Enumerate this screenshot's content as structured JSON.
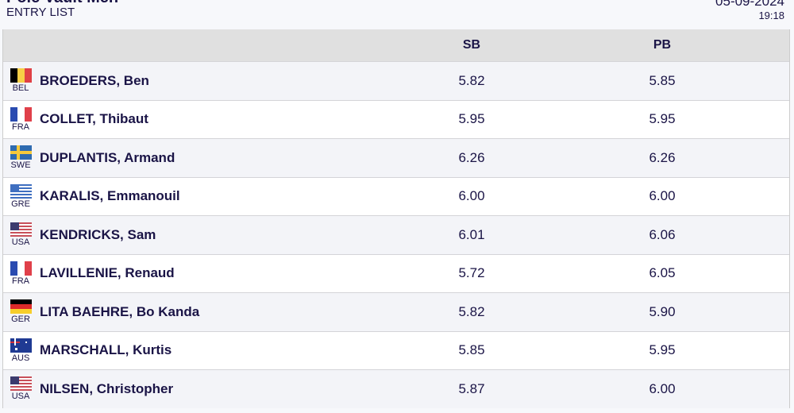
{
  "header": {
    "title": "Pole Vault Men",
    "subtitle": "ENTRY LIST",
    "date": "05-09-2024",
    "time": "19:18"
  },
  "columns": {
    "sb": "SB",
    "pb": "PB"
  },
  "rows": [
    {
      "code": "BEL",
      "name": "BROEDERS, Ben",
      "sb": "5.82",
      "pb": "5.85",
      "flag": "vertical",
      "colors": [
        "#000000",
        "#f7ce46",
        "#e04045"
      ]
    },
    {
      "code": "FRA",
      "name": "COLLET, Thibaut",
      "sb": "5.95",
      "pb": "5.95",
      "flag": "vertical",
      "colors": [
        "#2a4bb0",
        "#ffffff",
        "#e0404a"
      ]
    },
    {
      "code": "SWE",
      "name": "DUPLANTIS, Armand",
      "sb": "6.26",
      "pb": "6.26",
      "flag": "nordic",
      "colors": [
        "#2f6bb0",
        "#f6c93a"
      ]
    },
    {
      "code": "GRE",
      "name": "KARALIS, Emmanouil",
      "sb": "6.00",
      "pb": "6.00",
      "flag": "stripes",
      "colors": [
        "#3f6fc0",
        "#ffffff"
      ]
    },
    {
      "code": "USA",
      "name": "KENDRICKS, Sam",
      "sb": "6.01",
      "pb": "6.06",
      "flag": "stripes",
      "colors": [
        "#c8505a",
        "#ffffff",
        "#3c3b6e"
      ]
    },
    {
      "code": "FRA",
      "name": "LAVILLENIE, Renaud",
      "sb": "5.72",
      "pb": "6.05",
      "flag": "vertical",
      "colors": [
        "#2a4bb0",
        "#ffffff",
        "#e0404a"
      ]
    },
    {
      "code": "GER",
      "name": "LITA BAEHRE, Bo Kanda",
      "sb": "5.82",
      "pb": "5.90",
      "flag": "horizontal",
      "colors": [
        "#000000",
        "#dd2a2a",
        "#f7ce2a"
      ]
    },
    {
      "code": "AUS",
      "name": "MARSCHALL, Kurtis",
      "sb": "5.85",
      "pb": "5.95",
      "flag": "aus",
      "colors": [
        "#1f3a93",
        "#ffffff",
        "#d0303a"
      ]
    },
    {
      "code": "USA",
      "name": "NILSEN, Christopher",
      "sb": "5.87",
      "pb": "6.00",
      "flag": "stripes",
      "colors": [
        "#c8505a",
        "#ffffff",
        "#3c3b6e"
      ]
    }
  ]
}
